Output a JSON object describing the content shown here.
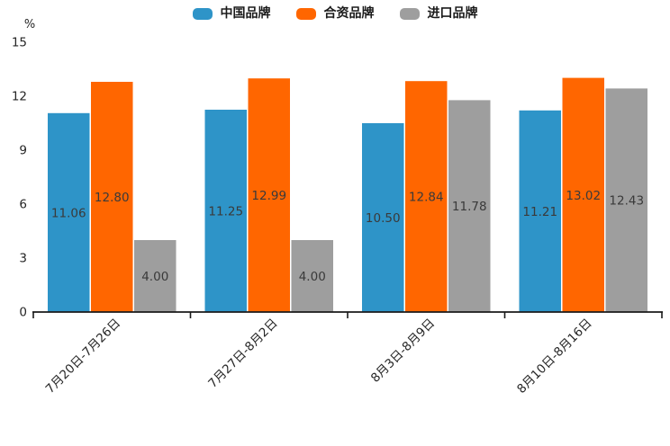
{
  "chart_data": {
    "type": "bar",
    "title": "",
    "unit_label": "%",
    "categories": [
      "7月20日-7月26日",
      "7月27日-8月2日",
      "8月3日-8月9日",
      "8月10日-8月16日"
    ],
    "series": [
      {
        "name": "中国品牌",
        "color": "#2E94C8",
        "values": [
          11.06,
          11.25,
          10.5,
          11.21
        ]
      },
      {
        "name": "合资品牌",
        "color": "#FF6600",
        "values": [
          12.8,
          12.99,
          12.84,
          13.02
        ]
      },
      {
        "name": "进口品牌",
        "color": "#9E9E9E",
        "values": [
          4.0,
          4.0,
          11.78,
          12.43
        ]
      }
    ],
    "value_labels": [
      [
        "11.06",
        "11.25",
        "10.50",
        "11.21"
      ],
      [
        "12.80",
        "12.99",
        "12.84",
        "13.02"
      ],
      [
        "4.00",
        "4.00",
        "11.78",
        "12.43"
      ]
    ],
    "ylim": [
      0,
      15
    ],
    "yticks": [
      "0",
      "3",
      "6",
      "9",
      "12",
      "15"
    ],
    "grid": false,
    "legend_position": "top",
    "colors": {
      "axis": "#1a1a1a",
      "tick_label": "#262626",
      "value_label": "#3a3a3a",
      "background": "#ffffff"
    }
  }
}
